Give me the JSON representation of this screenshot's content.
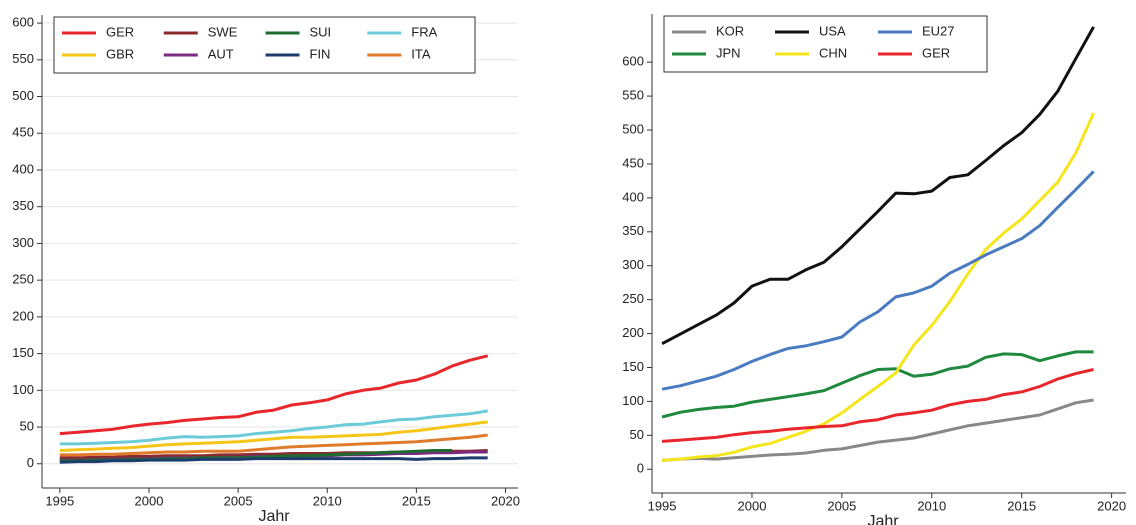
{
  "chart_data": [
    {
      "type": "line",
      "x_label": "Jahr",
      "x": [
        1995,
        1996,
        1997,
        1998,
        1999,
        2000,
        2001,
        2002,
        2003,
        2004,
        2005,
        2006,
        2007,
        2008,
        2009,
        2010,
        2011,
        2012,
        2013,
        2014,
        2015,
        2016,
        2017,
        2018,
        2019
      ],
      "xlim": [
        1994,
        2020.7
      ],
      "xticks": [
        1995,
        2000,
        2005,
        2010,
        2015,
        2020
      ],
      "ylim": [
        -33,
        611
      ],
      "yticks": [
        0,
        50,
        100,
        150,
        200,
        250,
        300,
        350,
        400,
        450,
        500,
        550,
        600
      ],
      "grid": true,
      "legend": "top-left",
      "series": [
        {
          "name": "GER",
          "color": "#e8262b",
          "values": [
            41,
            43,
            45,
            47,
            51,
            54,
            56,
            59,
            61,
            63,
            64,
            70,
            73,
            80,
            83,
            87,
            95,
            100,
            103,
            110,
            114,
            122,
            133,
            141,
            147
          ]
        },
        {
          "name": "GBR",
          "color": "#f5c518",
          "values": [
            18,
            19,
            20,
            21,
            22,
            24,
            26,
            27,
            28,
            29,
            30,
            32,
            34,
            36,
            36,
            37,
            38,
            39,
            40,
            43,
            45,
            48,
            51,
            54,
            57
          ]
        },
        {
          "name": "SWE",
          "color": "#8b2a2a",
          "values": [
            8,
            8,
            9,
            9,
            10,
            10,
            11,
            11,
            11,
            12,
            12,
            13,
            13,
            14,
            14,
            14,
            15,
            15,
            15,
            16,
            16,
            16,
            17,
            17,
            18
          ]
        },
        {
          "name": "AUT",
          "color": "#7b2b82",
          "values": [
            5,
            5,
            6,
            6,
            7,
            7,
            8,
            8,
            8,
            9,
            9,
            10,
            10,
            11,
            11,
            11,
            12,
            12,
            13,
            14,
            14,
            15,
            15,
            16,
            16
          ]
        },
        {
          "name": "SUI",
          "color": "#1e6b2e",
          "values": [
            4,
            4,
            5,
            5,
            6,
            6,
            7,
            7,
            8,
            8,
            8,
            9,
            10,
            11,
            11,
            12,
            13,
            14,
            15,
            16,
            17,
            18,
            18,
            null,
            null
          ]
        },
        {
          "name": "FIN",
          "color": "#1c3d6e",
          "values": [
            2,
            3,
            3,
            4,
            4,
            5,
            5,
            5,
            6,
            6,
            6,
            7,
            7,
            7,
            7,
            7,
            7,
            7,
            7,
            7,
            6,
            7,
            7,
            8,
            8
          ]
        },
        {
          "name": "FRA",
          "color": "#6ccbd8",
          "values": [
            27,
            27,
            28,
            29,
            30,
            32,
            35,
            37,
            36,
            37,
            38,
            41,
            43,
            45,
            48,
            50,
            53,
            54,
            57,
            60,
            61,
            64,
            66,
            68,
            72
          ]
        },
        {
          "name": "ITA",
          "color": "#e07b2c",
          "values": [
            12,
            12,
            13,
            13,
            14,
            15,
            16,
            16,
            17,
            17,
            17,
            19,
            21,
            23,
            24,
            25,
            26,
            27,
            28,
            29,
            30,
            32,
            34,
            36,
            39
          ]
        }
      ]
    },
    {
      "type": "line",
      "x_label": "Jahr",
      "x": [
        1995,
        1996,
        1997,
        1998,
        1999,
        2000,
        2001,
        2002,
        2003,
        2004,
        2005,
        2006,
        2007,
        2008,
        2009,
        2010,
        2011,
        2012,
        2013,
        2014,
        2015,
        2016,
        2017,
        2018,
        2019
      ],
      "xlim": [
        1994.44,
        2020.8
      ],
      "xticks": [
        1995,
        2000,
        2005,
        2010,
        2015,
        2020
      ],
      "ylim": [
        -35,
        671
      ],
      "yticks": [
        0,
        50,
        100,
        150,
        200,
        250,
        300,
        350,
        400,
        450,
        500,
        550,
        600
      ],
      "grid": false,
      "legend": "top-left",
      "series": [
        {
          "name": "KOR",
          "color": "#888888",
          "values": [
            13,
            15,
            16,
            15,
            17,
            19,
            21,
            22,
            24,
            28,
            30,
            35,
            40,
            43,
            46,
            52,
            58,
            64,
            68,
            72,
            76,
            80,
            89,
            98,
            102
          ]
        },
        {
          "name": "JPN",
          "color": "#1f8a3e",
          "values": [
            77,
            84,
            88,
            91,
            93,
            99,
            103,
            107,
            111,
            116,
            127,
            138,
            147,
            148,
            137,
            140,
            148,
            152,
            165,
            170,
            169,
            160,
            167,
            173,
            173
          ]
        },
        {
          "name": "USA",
          "color": "#111111",
          "values": [
            185,
            199,
            213,
            227,
            245,
            270,
            280,
            280,
            294,
            305,
            328,
            354,
            380,
            407,
            406,
            410,
            430,
            434,
            455,
            477,
            496,
            523,
            557,
            605,
            652
          ]
        },
        {
          "name": "CHN",
          "color": "#f5e61c",
          "values": [
            13,
            15,
            18,
            20,
            25,
            33,
            38,
            47,
            56,
            67,
            83,
            103,
            122,
            142,
            183,
            212,
            247,
            288,
            324,
            348,
            369,
            396,
            423,
            466,
            525
          ]
        },
        {
          "name": "EU27",
          "color": "#4a7bc0",
          "values": [
            118,
            123,
            130,
            137,
            147,
            159,
            169,
            178,
            182,
            188,
            195,
            217,
            232,
            254,
            260,
            270,
            289,
            302,
            316,
            328,
            340,
            359,
            386,
            412,
            439
          ]
        },
        {
          "name": "GER",
          "color": "#e8262b",
          "values": [
            41,
            43,
            45,
            47,
            51,
            54,
            56,
            59,
            61,
            63,
            64,
            70,
            73,
            80,
            83,
            87,
            95,
            100,
            103,
            110,
            114,
            122,
            133,
            141,
            147
          ]
        }
      ]
    }
  ]
}
